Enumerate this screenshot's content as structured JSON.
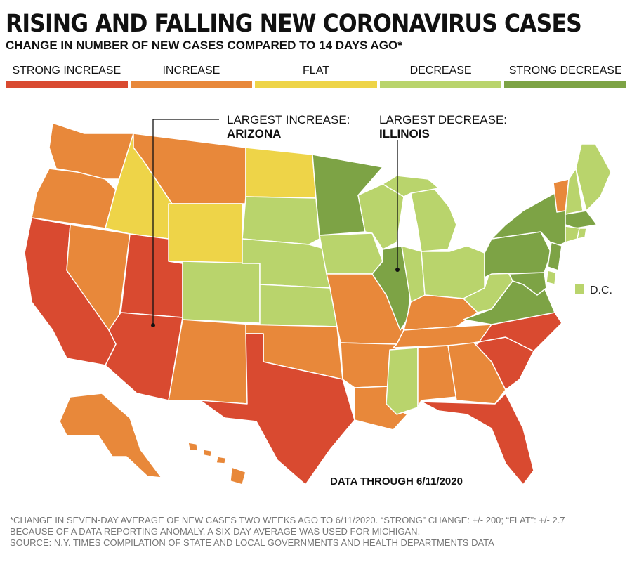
{
  "title": "RISING AND FALLING NEW CORONAVIRUS CASES",
  "subtitle": "CHANGE IN NUMBER OF NEW CASES COMPARED TO 14 DAYS AGO*",
  "legend": [
    {
      "label": "STRONG INCREASE",
      "color": "#d94a30"
    },
    {
      "label": "INCREASE",
      "color": "#e8883a"
    },
    {
      "label": "FLAT",
      "color": "#eed448"
    },
    {
      "label": "DECREASE",
      "color": "#b9d46c"
    },
    {
      "label": "STRONG DECREASE",
      "color": "#7da345"
    }
  ],
  "callouts": {
    "increase": {
      "label": "LARGEST INCREASE:",
      "state": "ARIZONA"
    },
    "decrease": {
      "label": "LARGEST DECREASE:",
      "state": "ILLINOIS"
    }
  },
  "dc_label": "D.C.",
  "data_through": "DATA THROUGH 6/11/2020",
  "footnotes": [
    "*CHANGE IN SEVEN-DAY AVERAGE OF NEW CASES TWO WEEKS AGO TO 6/11/2020. “STRONG” CHANGE: +/- 200; “FLAT”: +/- 2.7",
    "BECAUSE OF A DATA REPORTING ANOMALY, A SIX-DAY AVERAGE WAS USED FOR MICHIGAN.",
    "SOURCE: N.Y. TIMES COMPILATION OF STATE AND LOCAL GOVERNMENTS AND HEALTH DEPARTMENTS DATA"
  ],
  "states": {
    "WA": "increase",
    "OR": "increase",
    "CA": "strong_increase",
    "NV": "increase",
    "ID": "flat",
    "MT": "increase",
    "WY": "flat",
    "UT": "strong_increase",
    "AZ": "strong_increase",
    "CO": "decrease",
    "NM": "increase",
    "ND": "flat",
    "SD": "decrease",
    "NE": "decrease",
    "KS": "decrease",
    "OK": "increase",
    "TX": "strong_increase",
    "MN": "strong_decrease",
    "IA": "decrease",
    "MO": "increase",
    "AR": "increase",
    "LA": "increase",
    "WI": "decrease",
    "IL": "strong_decrease",
    "MI": "decrease",
    "IN": "decrease",
    "OH": "decrease",
    "KY": "increase",
    "TN": "increase",
    "MS": "decrease",
    "AL": "increase",
    "GA": "increase",
    "FL": "strong_increase",
    "SC": "strong_increase",
    "NC": "strong_increase",
    "VA": "strong_decrease",
    "WV": "decrease",
    "PA": "strong_decrease",
    "NY": "strong_decrease",
    "VT": "increase",
    "NH": "decrease",
    "ME": "decrease",
    "MA": "strong_decrease",
    "CT": "decrease",
    "RI": "decrease",
    "NJ": "strong_decrease",
    "DE": "decrease",
    "MD": "strong_decrease",
    "DC": "decrease",
    "AK": "increase",
    "HI": "increase"
  },
  "category_colors": {
    "strong_increase": "#d94a30",
    "increase": "#e8883a",
    "flat": "#eed448",
    "decrease": "#b9d46c",
    "strong_decrease": "#7da345"
  }
}
